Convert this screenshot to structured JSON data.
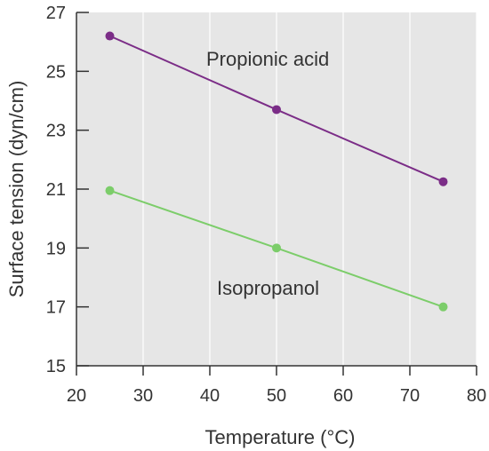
{
  "chart_data": {
    "type": "line",
    "title": "",
    "xlabel": "Temperature (°C)",
    "ylabel": "Surface tension (dyn/cm)",
    "xlim": [
      20,
      80
    ],
    "ylim": [
      15,
      27
    ],
    "xticks": [
      20,
      30,
      40,
      50,
      60,
      70,
      80
    ],
    "yticks": [
      15,
      17,
      19,
      21,
      23,
      25,
      27
    ],
    "grid": true,
    "background": "#e6e6e6",
    "legend": "inline-labels",
    "series": [
      {
        "name": "Propionic acid",
        "color": "#7b2d87",
        "x": [
          25,
          50,
          75
        ],
        "y": [
          26.2,
          23.7,
          21.25
        ]
      },
      {
        "name": "Isopropanol",
        "color": "#7ccd6a",
        "x": [
          25,
          50,
          75
        ],
        "y": [
          20.95,
          19.0,
          17.0
        ]
      }
    ]
  }
}
